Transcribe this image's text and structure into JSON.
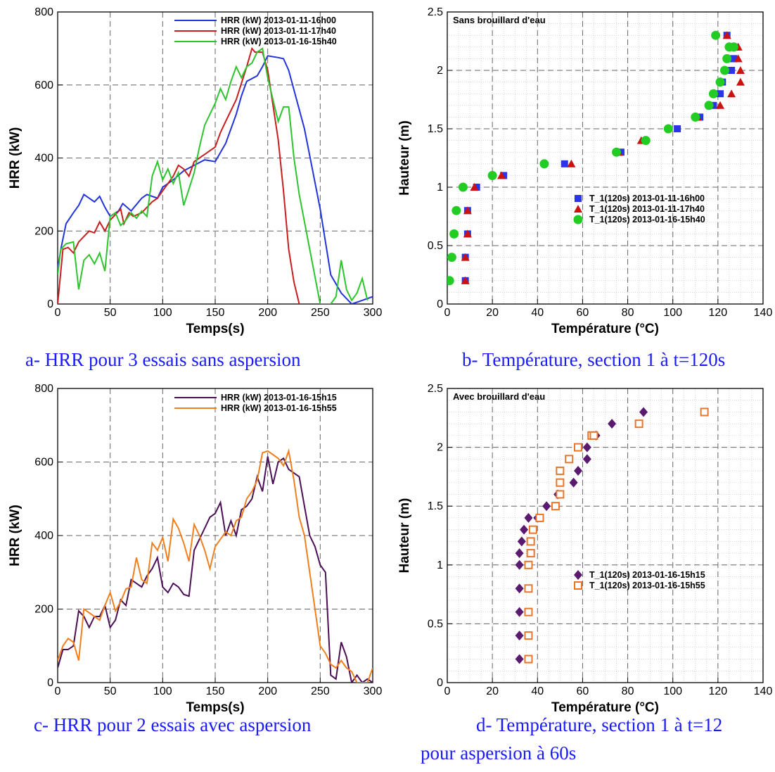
{
  "captions": {
    "a": "a- HRR pour 3 essais sans aspersion",
    "b": "b- Température, section 1 à t=120s",
    "c": "c- HRR pour 2 essais avec aspersion",
    "d_line1": "d- Température, section 1 à t=12",
    "d_line2": "pour aspersion à 60s"
  },
  "chart_data": [
    {
      "id": "a",
      "type": "line",
      "title": "",
      "xlabel": "Temps(s)",
      "ylabel": "HRR (kW)",
      "xlim": [
        0,
        300
      ],
      "ylim": [
        0,
        800
      ],
      "xticks": [
        0,
        50,
        100,
        150,
        200,
        250,
        300
      ],
      "yticks": [
        0,
        200,
        400,
        600,
        800
      ],
      "grid": true,
      "legend": "top-right",
      "series": [
        {
          "name": "HRR (kW) 2013-01-11-16h00",
          "color": "#2233dd",
          "x": [
            0,
            3,
            8,
            15,
            20,
            25,
            35,
            40,
            45,
            50,
            58,
            62,
            70,
            80,
            85,
            95,
            100,
            110,
            120,
            130,
            140,
            150,
            160,
            170,
            175,
            180,
            190,
            195,
            200,
            210,
            215,
            220,
            235,
            250,
            260,
            270,
            280,
            290,
            300
          ],
          "y": [
            95,
            150,
            220,
            250,
            270,
            300,
            280,
            295,
            265,
            240,
            255,
            275,
            255,
            290,
            300,
            290,
            320,
            340,
            365,
            380,
            395,
            390,
            440,
            520,
            570,
            610,
            625,
            650,
            680,
            675,
            672,
            640,
            480,
            260,
            80,
            30,
            0,
            10,
            20
          ]
        },
        {
          "name": "HRR (kW) 2013-01-11-17h40",
          "color": "#c81e1e",
          "x": [
            0,
            5,
            10,
            15,
            20,
            30,
            35,
            40,
            45,
            50,
            60,
            63,
            68,
            72,
            80,
            90,
            95,
            100,
            110,
            115,
            120,
            125,
            130,
            140,
            150,
            155,
            160,
            170,
            180,
            185,
            188,
            195,
            200,
            210,
            215,
            220,
            225,
            230
          ],
          "y": [
            0,
            150,
            155,
            140,
            170,
            200,
            195,
            225,
            200,
            230,
            260,
            220,
            250,
            240,
            250,
            280,
            290,
            310,
            350,
            380,
            370,
            350,
            390,
            410,
            430,
            470,
            500,
            560,
            650,
            700,
            690,
            690,
            640,
            450,
            310,
            150,
            60,
            0
          ]
        },
        {
          "name": "HRR (kW) 2013-01-16-15h40",
          "color": "#2ec42e",
          "x": [
            0,
            3,
            8,
            15,
            20,
            25,
            30,
            35,
            40,
            45,
            50,
            55,
            60,
            65,
            70,
            75,
            80,
            85,
            90,
            95,
            100,
            105,
            110,
            115,
            120,
            125,
            130,
            135,
            140,
            145,
            150,
            155,
            160,
            165,
            170,
            175,
            180,
            185,
            190,
            195,
            200,
            205,
            210,
            215,
            220,
            225,
            230,
            240,
            250,
            255,
            260,
            265,
            270,
            275,
            280,
            285,
            290,
            295
          ],
          "y": [
            80,
            150,
            165,
            170,
            40,
            120,
            135,
            110,
            140,
            90,
            240,
            250,
            215,
            230,
            250,
            235,
            255,
            240,
            350,
            390,
            340,
            370,
            330,
            360,
            270,
            315,
            360,
            430,
            490,
            520,
            550,
            590,
            560,
            610,
            650,
            620,
            650,
            660,
            690,
            700,
            620,
            560,
            500,
            540,
            540,
            400,
            300,
            150,
            0,
            0,
            0,
            20,
            120,
            40,
            10,
            30,
            70,
            10
          ]
        }
      ]
    },
    {
      "id": "b",
      "type": "scatter",
      "title": "Sans brouillard d'eau",
      "xlabel": "Température (°C)",
      "ylabel": "Hauteur (m)",
      "xlim": [
        0,
        140
      ],
      "ylim": [
        0,
        2.5
      ],
      "xticks": [
        0,
        20,
        40,
        60,
        80,
        100,
        120,
        140
      ],
      "yticks": [
        0,
        0.5,
        1,
        1.5,
        2,
        2.5
      ],
      "ytick_labels": [
        "0",
        "0.5",
        "1",
        "1.5",
        "2",
        "2.5"
      ],
      "grid": true,
      "legend": "lower-right",
      "series": [
        {
          "name": "T_1(120s)  2013-01-11-16h00",
          "color": "#2b35e8",
          "marker": "square",
          "x": [
            8,
            8,
            9,
            9,
            13,
            25,
            52,
            77,
            102,
            112,
            118,
            121,
            122,
            126,
            127,
            127,
            127,
            124
          ],
          "y": [
            0.2,
            0.4,
            0.6,
            0.8,
            1.0,
            1.1,
            1.2,
            1.3,
            1.5,
            1.6,
            1.7,
            1.8,
            1.9,
            2.0,
            2.1,
            2.1,
            2.2,
            2.3
          ]
        },
        {
          "name": "T_1(120s)  2013-01-11-17h40",
          "color": "#cc1111",
          "marker": "triangle",
          "x": [
            8,
            8,
            9,
            9,
            12,
            24,
            55,
            76,
            86,
            111,
            121,
            126,
            130,
            130,
            129,
            128,
            129,
            124
          ],
          "y": [
            0.2,
            0.4,
            0.6,
            0.8,
            1.0,
            1.1,
            1.2,
            1.3,
            1.4,
            1.6,
            1.7,
            1.8,
            1.9,
            2.0,
            2.1,
            2.2,
            2.2,
            2.3
          ]
        },
        {
          "name": "T_1(120s)  2013-01-16-15h40",
          "color": "#22cc22",
          "marker": "circle",
          "x": [
            1,
            2,
            3,
            4,
            7,
            20,
            43,
            75,
            88,
            98,
            110,
            116,
            118,
            121,
            123,
            124,
            125,
            127,
            119
          ],
          "y": [
            0.2,
            0.4,
            0.6,
            0.8,
            1.0,
            1.1,
            1.2,
            1.3,
            1.4,
            1.5,
            1.6,
            1.7,
            1.8,
            1.9,
            2.0,
            2.1,
            2.2,
            2.2,
            2.3
          ]
        }
      ]
    },
    {
      "id": "c",
      "type": "line",
      "title": "",
      "xlabel": "Temps(s)",
      "ylabel": "HRR (kW)",
      "xlim": [
        0,
        300
      ],
      "ylim": [
        0,
        800
      ],
      "xticks": [
        0,
        50,
        100,
        150,
        200,
        250,
        300
      ],
      "yticks": [
        0,
        200,
        400,
        600,
        800
      ],
      "grid": true,
      "legend": "top-right",
      "series": [
        {
          "name": "HRR (kW) 2013-01-16-15h15",
          "color": "#4b0f55",
          "x": [
            0,
            5,
            10,
            15,
            20,
            25,
            30,
            35,
            40,
            45,
            50,
            55,
            60,
            65,
            70,
            75,
            80,
            85,
            90,
            95,
            100,
            105,
            110,
            115,
            120,
            125,
            130,
            135,
            140,
            145,
            150,
            155,
            160,
            165,
            170,
            175,
            180,
            185,
            190,
            195,
            200,
            205,
            210,
            215,
            220,
            225,
            230,
            235,
            240,
            245,
            250,
            255,
            260,
            265,
            270,
            275,
            280,
            285,
            290,
            295,
            300
          ],
          "y": [
            40,
            90,
            90,
            100,
            195,
            180,
            150,
            180,
            180,
            210,
            150,
            170,
            225,
            210,
            280,
            270,
            260,
            290,
            310,
            340,
            260,
            245,
            270,
            260,
            240,
            235,
            360,
            390,
            420,
            450,
            460,
            490,
            400,
            440,
            400,
            470,
            480,
            500,
            560,
            520,
            615,
            540,
            600,
            610,
            580,
            570,
            560,
            480,
            400,
            370,
            320,
            300,
            20,
            10,
            110,
            70,
            0,
            20,
            0,
            10,
            0
          ]
        },
        {
          "name": "HRR (kW) 2013-01-16-15h55",
          "color": "#f07f1e",
          "x": [
            0,
            5,
            10,
            15,
            20,
            25,
            30,
            35,
            40,
            45,
            50,
            55,
            60,
            65,
            70,
            75,
            80,
            85,
            90,
            95,
            100,
            105,
            110,
            115,
            120,
            125,
            130,
            135,
            140,
            145,
            150,
            155,
            160,
            165,
            170,
            175,
            180,
            185,
            190,
            195,
            200,
            205,
            210,
            215,
            220,
            225,
            230,
            235,
            240,
            245,
            250,
            255,
            260,
            265,
            270,
            275,
            280,
            285,
            290,
            295,
            300
          ],
          "y": [
            60,
            100,
            120,
            110,
            60,
            200,
            190,
            180,
            170,
            210,
            245,
            195,
            220,
            255,
            260,
            340,
            280,
            270,
            380,
            360,
            395,
            330,
            445,
            420,
            380,
            330,
            430,
            400,
            360,
            310,
            370,
            390,
            410,
            400,
            440,
            450,
            500,
            520,
            550,
            625,
            630,
            620,
            610,
            590,
            630,
            550,
            450,
            400,
            300,
            200,
            100,
            80,
            50,
            40,
            60,
            40,
            30,
            0,
            0,
            0,
            40
          ]
        }
      ]
    },
    {
      "id": "d",
      "type": "scatter",
      "title": "Avec brouillard d'eau",
      "xlabel": "Température (°C)",
      "ylabel": "Hauteur (m)",
      "xlim": [
        0,
        140
      ],
      "ylim": [
        0,
        2.5
      ],
      "xticks": [
        0,
        20,
        40,
        60,
        80,
        100,
        120,
        140
      ],
      "yticks": [
        0,
        0.5,
        1,
        1.5,
        2,
        2.5
      ],
      "ytick_labels": [
        "0",
        "0.5",
        "1",
        "1.5",
        "2",
        "2.5"
      ],
      "grid": true,
      "legend": "lower-right",
      "series": [
        {
          "name": "T_1(120s)  2013-01-16-15h15",
          "color": "#5a1a6e",
          "marker": "diamond",
          "x": [
            32,
            32,
            32,
            32,
            32,
            32,
            33,
            34,
            36,
            40,
            44,
            49,
            56,
            58,
            62,
            62,
            66,
            73,
            87
          ],
          "y": [
            0.2,
            0.4,
            0.6,
            0.8,
            1.0,
            1.1,
            1.2,
            1.3,
            1.4,
            1.4,
            1.5,
            1.6,
            1.7,
            1.8,
            1.9,
            2.0,
            2.1,
            2.2,
            2.3
          ]
        },
        {
          "name": "T_1(120s)  2013-01-16-15h55",
          "color": "#e8762a",
          "marker": "open-square",
          "x": [
            36,
            36,
            36,
            36,
            36,
            37,
            37,
            38,
            41,
            48,
            50,
            50,
            50,
            54,
            58,
            64,
            65,
            85,
            114
          ],
          "y": [
            0.2,
            0.4,
            0.6,
            0.8,
            1.0,
            1.1,
            1.2,
            1.3,
            1.4,
            1.5,
            1.6,
            1.7,
            1.8,
            1.9,
            2.0,
            2.1,
            2.1,
            2.2,
            2.3
          ]
        }
      ]
    }
  ]
}
